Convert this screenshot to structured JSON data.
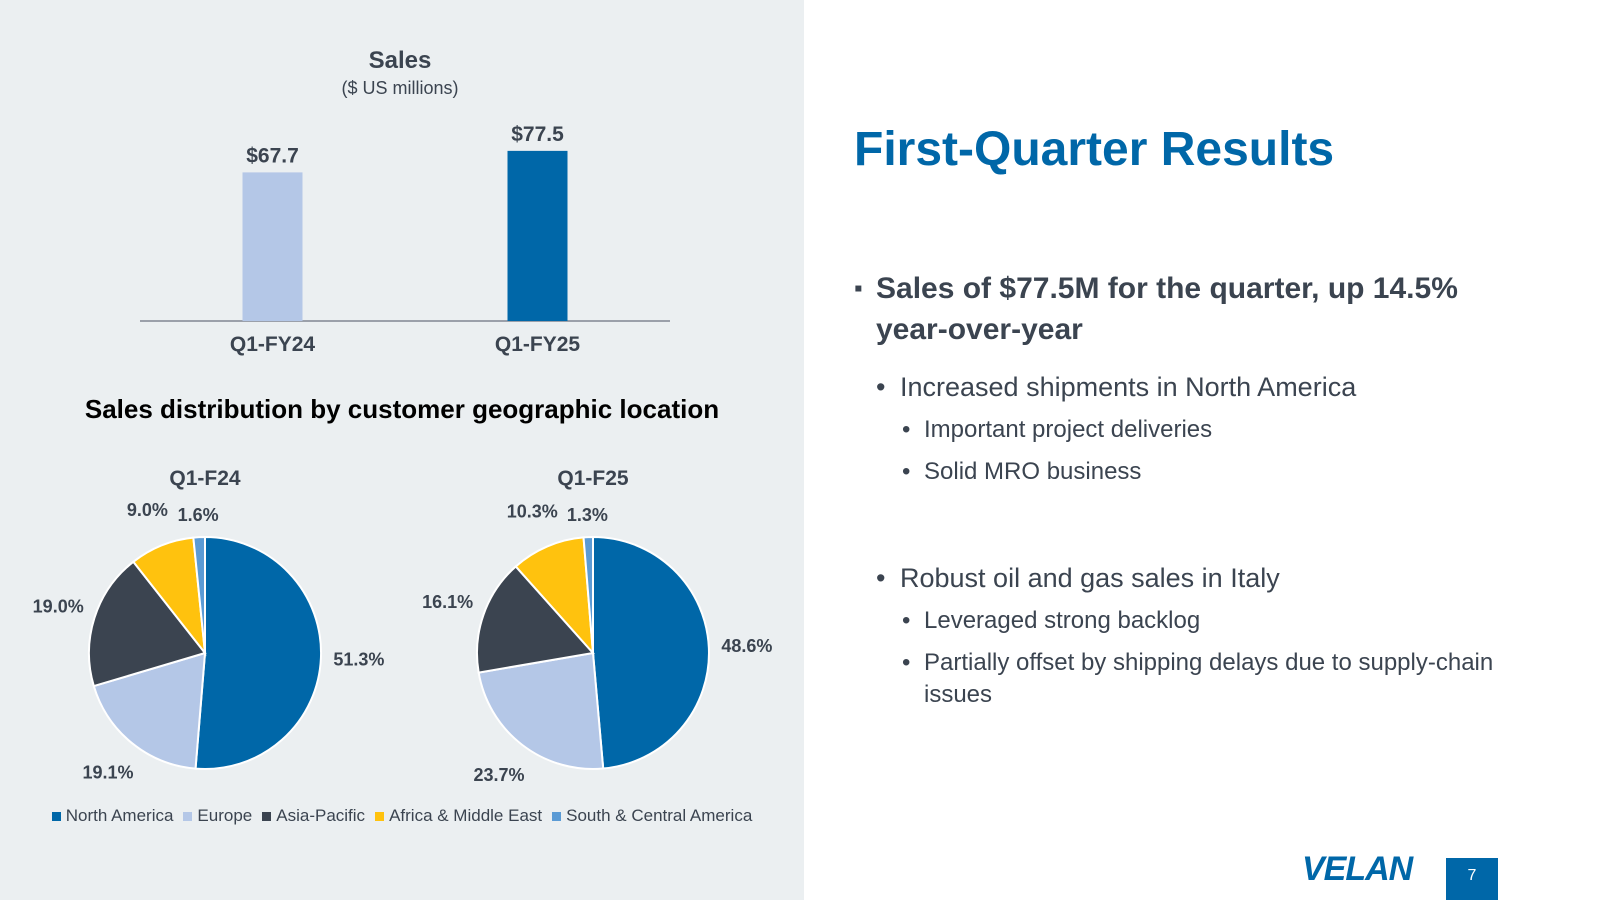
{
  "title": "First-Quarter Results",
  "bullets": {
    "main": "Sales of $77.5M for the quarter, up 14.5% year-over-year",
    "sub1": "Increased shipments in North America",
    "sub1_items": [
      "Important project deliveries",
      "Solid MRO business"
    ],
    "sub2": "Robust oil and gas sales in Italy",
    "sub2_items": [
      "Leveraged strong backlog",
      "Partially offset by shipping delays due to supply-chain issues"
    ]
  },
  "geo_heading": "Sales distribution by customer geographic location",
  "logo": "VELAN",
  "page_number": "7",
  "colors": {
    "accent": "#0067a8",
    "north_america": "#0067a8",
    "europe": "#b4c7e7",
    "asia_pacific": "#3b4450",
    "africa_middle_east": "#ffc20e",
    "south_central_america": "#5b9bd5",
    "panel_background": "#ebeff1"
  },
  "chart_data": [
    {
      "type": "bar",
      "title": "Sales",
      "subtitle": "($ US millions)",
      "categories": [
        "Q1-FY24",
        "Q1-FY25"
      ],
      "values": [
        67.7,
        77.5
      ],
      "data_labels": [
        "$67.7",
        "$77.5"
      ],
      "bar_colors": [
        "#b4c7e7",
        "#0067a8"
      ],
      "ylim": [
        0,
        82
      ],
      "grid": false
    },
    {
      "type": "pie",
      "title": "Q1-F24",
      "categories": [
        "North America",
        "Europe",
        "Asia-Pacific",
        "Africa & Middle East",
        "South & Central America"
      ],
      "values": [
        51.3,
        19.1,
        19.0,
        9.0,
        1.6
      ],
      "labels": [
        "51.3%",
        "19.1%",
        "19.0%",
        "9.0%",
        "1.6%"
      ]
    },
    {
      "type": "pie",
      "title": "Q1-F25",
      "categories": [
        "North America",
        "Europe",
        "Asia-Pacific",
        "Africa & Middle East",
        "South & Central America"
      ],
      "values": [
        48.6,
        23.7,
        16.1,
        10.3,
        1.3
      ],
      "labels": [
        "48.6%",
        "23.7%",
        "16.1%",
        "10.3%",
        "1.3%"
      ]
    }
  ],
  "legend": [
    "North America",
    "Europe",
    "Asia-Pacific",
    "Africa & Middle East",
    "South & Central America"
  ],
  "legend_colors": [
    "#0067a8",
    "#b4c7e7",
    "#3b4450",
    "#ffc20e",
    "#5b9bd5"
  ]
}
